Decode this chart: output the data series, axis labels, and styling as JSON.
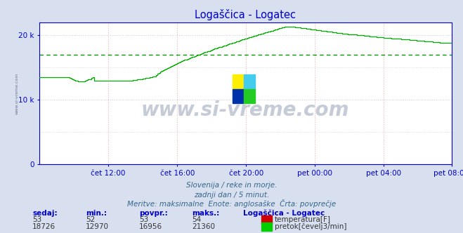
{
  "title": "Logaščica - Logatec",
  "bg_color": "#d8e0f0",
  "plot_bg_color": "#ffffff",
  "grid_color_h": "#c8c8d8",
  "grid_color_v": "#f0b0b0",
  "avg_line_color": "#009900",
  "temp_color": "#cc0000",
  "flow_color": "#00aa00",
  "axis_color": "#0000cc",
  "title_color": "#0000cc",
  "spine_color": "#0000cc",
  "ylim": [
    0,
    22000
  ],
  "yticks": [
    0,
    10000,
    20000
  ],
  "ytick_labels": [
    "0",
    "10 k",
    "20 k"
  ],
  "xtick_labels": [
    "čet 12:00",
    "čet 16:00",
    "čet 20:00",
    "pet 00:00",
    "pet 04:00",
    "pet 08:00"
  ],
  "avg_flow": 16956,
  "min_flow": 12970,
  "max_flow": 21360,
  "min_temp": 52,
  "max_temp": 54,
  "sedaj_flow": 18726,
  "sedaj_temp": 53,
  "povpr_flow": 16956,
  "povpr_temp": 53,
  "subtitle1": "Slovenija / reke in morje.",
  "subtitle2": "zadnji dan / 5 minut.",
  "subtitle3": "Meritve: maksimalne  Enote: anglosaške  Črta: povprečje",
  "legend_title": "Logaščica - Logatec",
  "label_temp": "temperatura[F]",
  "label_flow": "pretok[čevelj3/min]",
  "n_points": 288,
  "watermark": "www.si-vreme.com",
  "sidewatermark": "www.si-vreme.com"
}
